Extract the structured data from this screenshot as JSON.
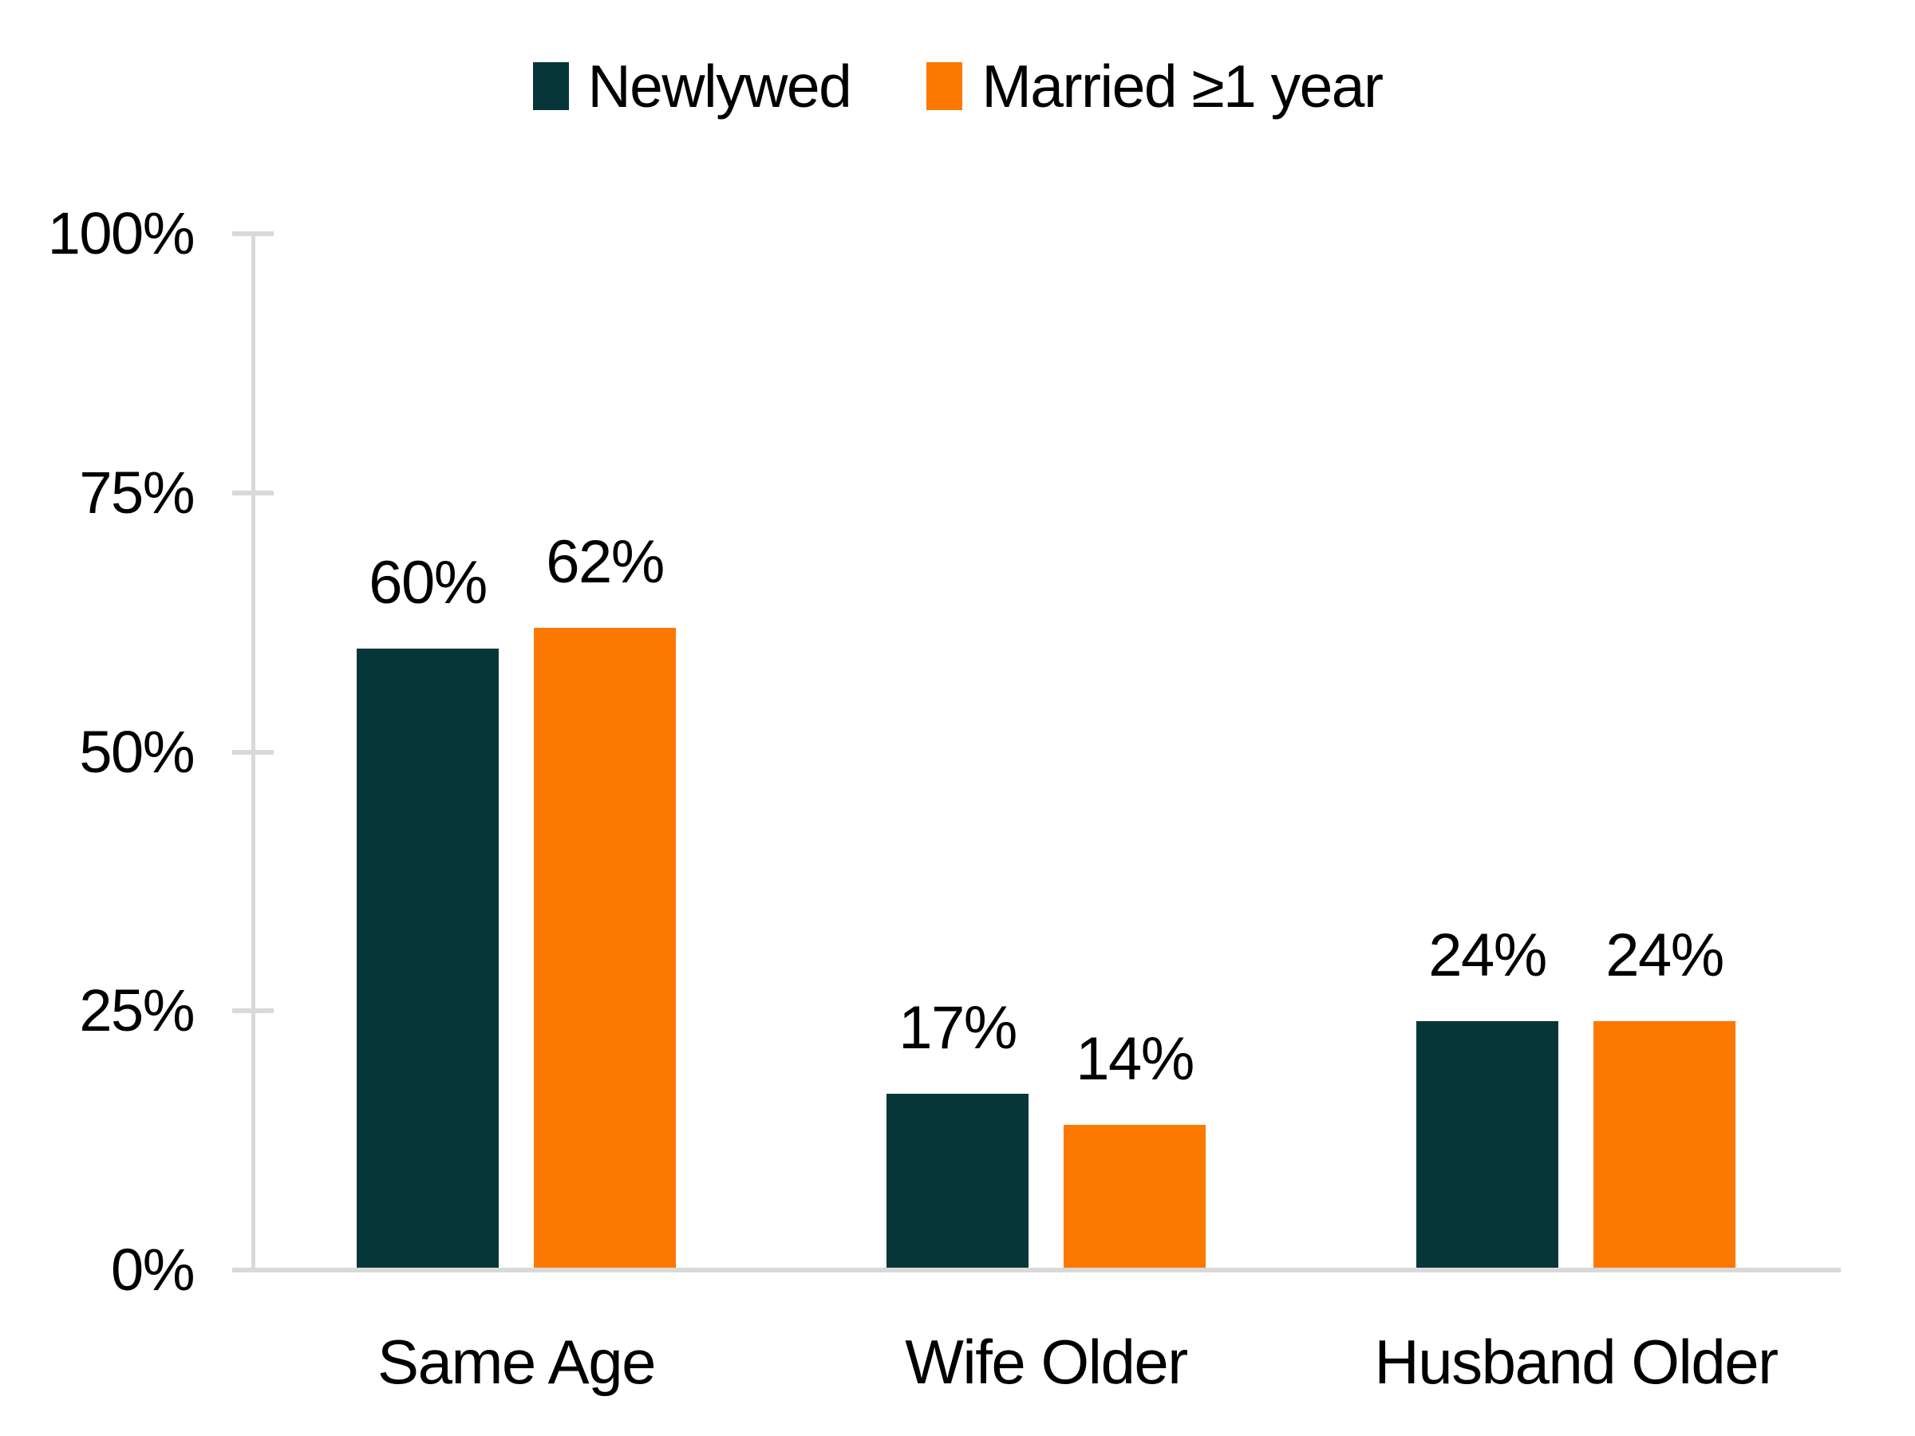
{
  "chart_data": {
    "type": "bar",
    "title": "",
    "categories": [
      "Same Age",
      "Wife Older",
      "Husband Older"
    ],
    "series": [
      {
        "name": "Newlywed",
        "color": "#073639",
        "values": [
          60,
          17,
          24
        ],
        "value_labels": [
          "60%",
          "17%",
          "24%"
        ]
      },
      {
        "name": "Married ≥1 year",
        "color": "#FC7800",
        "values": [
          62,
          14,
          24
        ],
        "value_labels": [
          "62%",
          "14%",
          "24%"
        ]
      }
    ],
    "y_axis": {
      "min": 0,
      "max": 100,
      "ticks": [
        {
          "value": 100,
          "label": "100%"
        },
        {
          "value": 75,
          "label": "75%"
        },
        {
          "value": 50,
          "label": "50%"
        },
        {
          "value": 25,
          "label": "25%"
        },
        {
          "value": 0,
          "label": "0%"
        }
      ]
    },
    "xlabel": "",
    "ylabel": "",
    "legend_position": "top-center",
    "grid": false,
    "axis_color": "#D9D9D9",
    "text_color": "#000000",
    "background": "#FFFFFF"
  }
}
